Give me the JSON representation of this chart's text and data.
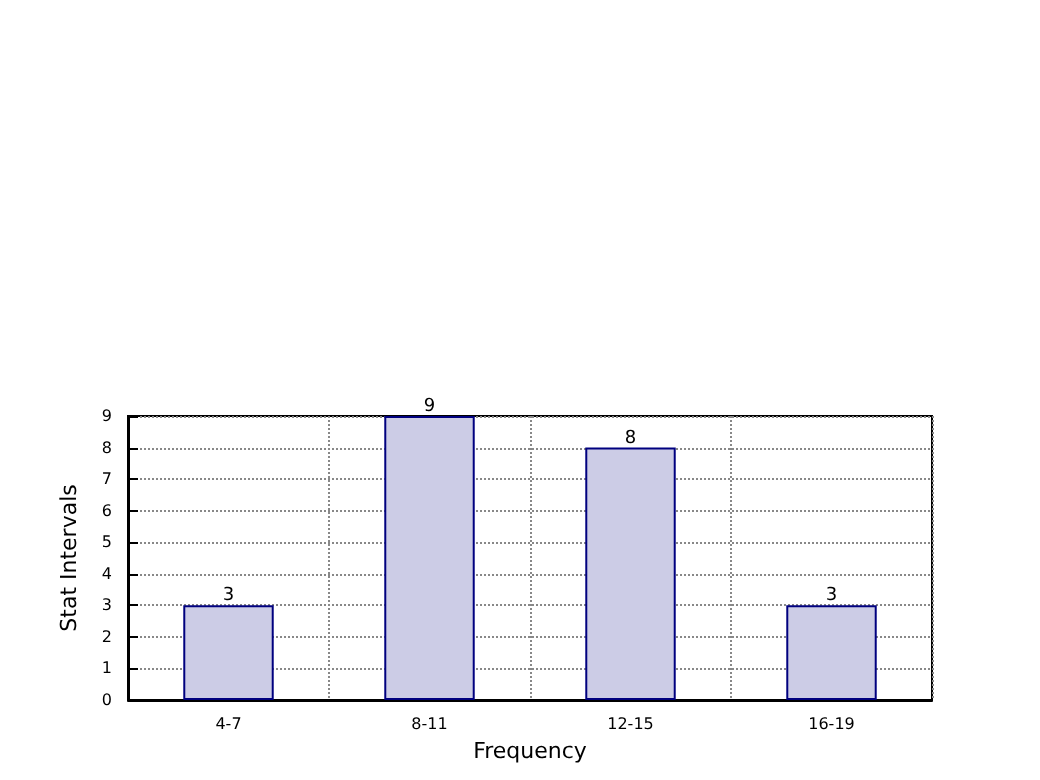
{
  "chart_data": {
    "type": "bar",
    "xlabel": "Frequency",
    "ylabel": "Stat Intervals",
    "categories": [
      "4-7",
      "8-11",
      "12-15",
      "16-19"
    ],
    "values": [
      3,
      9,
      8,
      3
    ],
    "color": "#ccccE6",
    "ylim": [
      0,
      9
    ],
    "yticks": [
      0,
      1,
      2,
      3,
      4,
      5,
      6,
      7,
      8,
      9
    ],
    "grid": true,
    "data_labels": true
  }
}
